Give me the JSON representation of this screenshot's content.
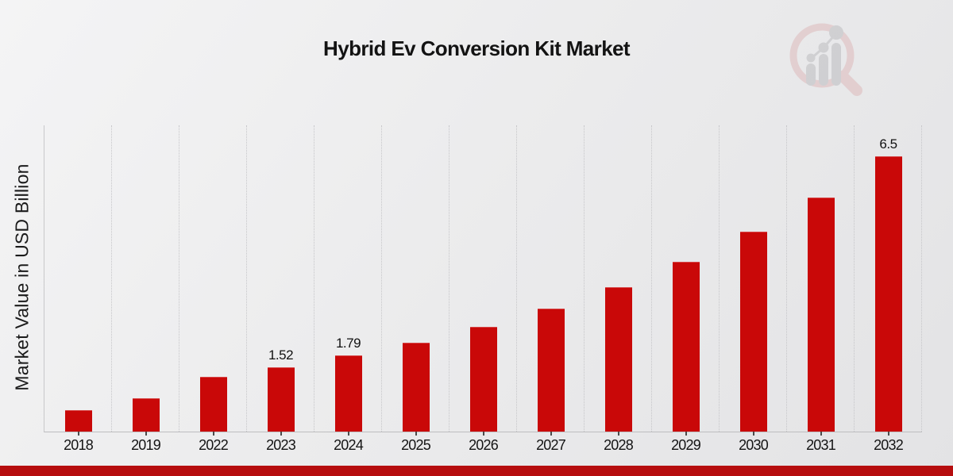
{
  "header": {
    "title": "Hybrid Ev Conversion Kit Market"
  },
  "chart_data": {
    "type": "bar",
    "title": "Hybrid Ev Conversion Kit Market",
    "xlabel": "",
    "ylabel": "Market Value in USD Billion",
    "categories": [
      "2018",
      "2019",
      "2022",
      "2023",
      "2024",
      "2025",
      "2026",
      "2027",
      "2028",
      "2029",
      "2030",
      "2031",
      "2032"
    ],
    "values": [
      0.51,
      0.79,
      1.29,
      1.52,
      1.79,
      2.1,
      2.47,
      2.9,
      3.41,
      4.01,
      4.72,
      5.53,
      6.5
    ],
    "bar_labels": {
      "2023": "1.52",
      "2024": "1.79",
      "2032": "6.5"
    },
    "ylim": [
      0,
      7.23
    ],
    "grid": "vertical-dotted",
    "legend": "none",
    "bar_color": "#c90808",
    "gridline_color": "#c6c6c9"
  },
  "logo": {
    "name": "magnifier-bar-chart-logo",
    "ring_color": "#debabb",
    "bar_color": "#bcbcc0"
  },
  "footer": {
    "banner_color": "#b60d0e"
  }
}
